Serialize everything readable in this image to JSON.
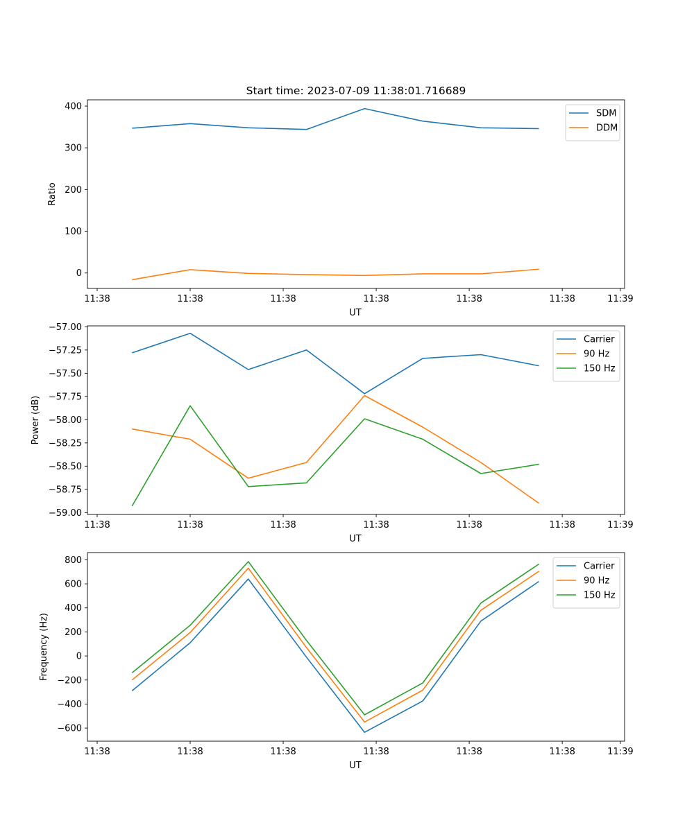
{
  "figure_title": "Start time: 2023-07-09 11:38:01.716689",
  "colors": {
    "blue": "#1f77b4",
    "orange": "#ff7f0e",
    "green": "#2ca02c"
  },
  "chart_data": [
    {
      "type": "line",
      "title": "Start time: 2023-07-09 11:38:01.716689",
      "xlabel": "UT",
      "ylabel": "Ratio",
      "x": [
        1,
        2,
        3,
        4,
        5,
        6,
        7,
        8
      ],
      "xlim": [
        0.2329,
        9.4726
      ],
      "xticks": [
        0.4,
        2,
        3.6,
        5.2,
        6.8,
        8.4
      ],
      "xtick_labels": [
        "11:38",
        "11:38",
        "11:38",
        "11:38",
        "11:38",
        "11:38"
      ],
      "xtick_end_label": "11:39",
      "ylim": [
        -37,
        415
      ],
      "yticks": [
        0,
        100,
        200,
        300,
        400
      ],
      "ytick_labels": [
        "0",
        "100",
        "200",
        "300",
        "400"
      ],
      "legend_position": "top-right",
      "series": [
        {
          "name": "SDM",
          "color": "#1f77b4",
          "values": [
            347,
            358,
            348,
            344,
            394,
            364,
            348,
            346
          ]
        },
        {
          "name": "DDM",
          "color": "#ff7f0e",
          "values": [
            -16,
            8,
            -1,
            -4,
            -6,
            -2,
            -2,
            9
          ]
        }
      ]
    },
    {
      "type": "line",
      "title": "",
      "xlabel": "UT",
      "ylabel": "Power (dB)",
      "x": [
        1,
        2,
        3,
        4,
        5,
        6,
        7,
        8
      ],
      "xlim": [
        0.2329,
        9.4726
      ],
      "xticks": [
        0.4,
        2,
        3.6,
        5.2,
        6.8,
        8.4
      ],
      "xtick_labels": [
        "11:38",
        "11:38",
        "11:38",
        "11:38",
        "11:38",
        "11:38"
      ],
      "xtick_end_label": "11:39",
      "ylim": [
        -59.02,
        -56.99
      ],
      "yticks": [
        -59.0,
        -58.75,
        -58.5,
        -58.25,
        -58.0,
        -57.75,
        -57.5,
        -57.25,
        -57.0
      ],
      "ytick_labels": [
        "−59.00",
        "−58.75",
        "−58.50",
        "−58.25",
        "−58.00",
        "−57.75",
        "−57.50",
        "−57.25",
        "−57.00"
      ],
      "legend_position": "top-right",
      "series": [
        {
          "name": "Carrier",
          "color": "#1f77b4",
          "values": [
            -57.28,
            -57.07,
            -57.46,
            -57.25,
            -57.72,
            -57.34,
            -57.3,
            -57.42
          ]
        },
        {
          "name": "90 Hz",
          "color": "#ff7f0e",
          "values": [
            -58.1,
            -58.21,
            -58.63,
            -58.46,
            -57.74,
            -58.08,
            -58.46,
            -58.9
          ]
        },
        {
          "name": "150 Hz",
          "color": "#2ca02c",
          "values": [
            -58.93,
            -57.85,
            -58.72,
            -58.68,
            -57.99,
            -58.21,
            -58.58,
            -58.48
          ]
        }
      ]
    },
    {
      "type": "line",
      "title": "",
      "xlabel": "UT",
      "ylabel": "Frequency (Hz)",
      "x": [
        1,
        2,
        3,
        4,
        5,
        6,
        7,
        8
      ],
      "xlim": [
        0.2329,
        9.4726
      ],
      "xticks": [
        0.4,
        2,
        3.6,
        5.2,
        6.8,
        8.4
      ],
      "xtick_labels": [
        "11:38",
        "11:38",
        "11:38",
        "11:38",
        "11:38",
        "11:38"
      ],
      "xtick_end_label": "11:39",
      "ylim": [
        -709,
        860
      ],
      "yticks": [
        -600,
        -400,
        -200,
        0,
        200,
        400,
        600,
        800
      ],
      "ytick_labels": [
        "−600",
        "−400",
        "−200",
        "0",
        "200",
        "400",
        "600",
        "800"
      ],
      "legend_position": "top-right",
      "series": [
        {
          "name": "Carrier",
          "color": "#1f77b4",
          "values": [
            -290,
            110,
            640,
            -10,
            -635,
            -375,
            290,
            620
          ]
        },
        {
          "name": "90 Hz",
          "color": "#ff7f0e",
          "values": [
            -200,
            195,
            730,
            70,
            -550,
            -285,
            380,
            705
          ]
        },
        {
          "name": "150 Hz",
          "color": "#2ca02c",
          "values": [
            -140,
            255,
            785,
            130,
            -490,
            -225,
            440,
            765
          ]
        }
      ]
    }
  ]
}
